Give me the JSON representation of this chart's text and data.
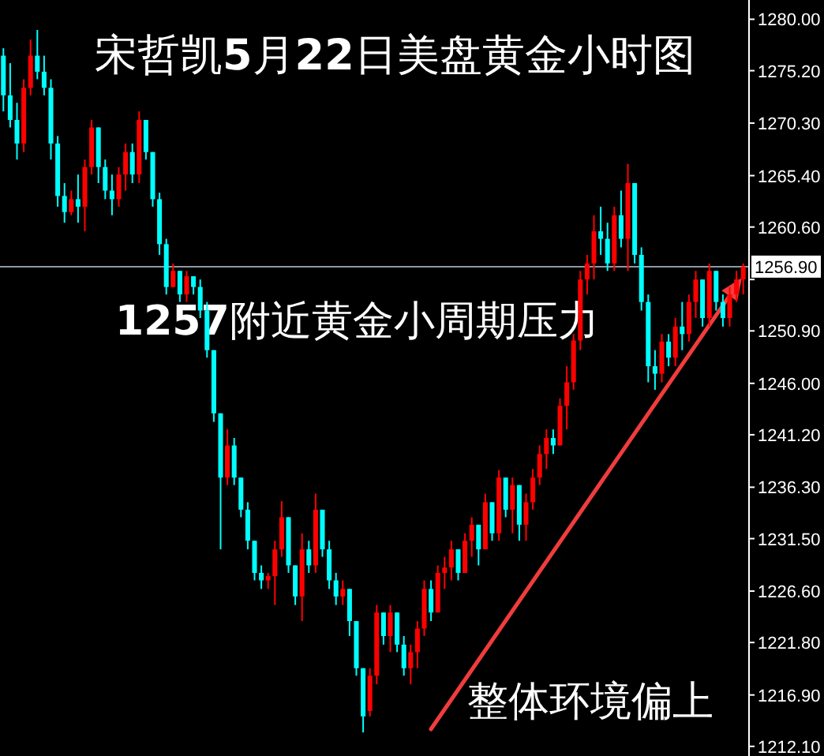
{
  "chart_data": {
    "type": "candlestick",
    "title": "宋哲凯**5**月**22**日美盘黄金小时图",
    "annotations": [
      "**1257**附近黄金小周期压力",
      "整体环境偏上"
    ],
    "categories": [
      null,
      null,
      null,
      null,
      null,
      null,
      null,
      null,
      null,
      null,
      null,
      null,
      null,
      null,
      null,
      null,
      null,
      null,
      null,
      null,
      null,
      null,
      null,
      null,
      null,
      null,
      null,
      null,
      null,
      null,
      null,
      null,
      null,
      null,
      null,
      null,
      null,
      null,
      null,
      null,
      null,
      null,
      null,
      null,
      null,
      null,
      null,
      null,
      null,
      null,
      null,
      null,
      null,
      null,
      null,
      null,
      null,
      null,
      null,
      null,
      null,
      null,
      null,
      null,
      null,
      null,
      null,
      null,
      null,
      null,
      null,
      null,
      null,
      null,
      null,
      null,
      null,
      null,
      null,
      null,
      null,
      null,
      null,
      null,
      null,
      null,
      null,
      null,
      null,
      null,
      null,
      null,
      null,
      null,
      null,
      null,
      null,
      null,
      null,
      null,
      null,
      null,
      null,
      null,
      null,
      null,
      null,
      null,
      null,
      null
    ],
    "ohlc": [
      [
        1276.6,
        1277.3,
        1271.4,
        1272.9
      ],
      [
        1272.9,
        1275.9,
        1269.9,
        1270.6
      ],
      [
        1270.6,
        1272.2,
        1266.9,
        1268.4
      ],
      [
        1268.4,
        1274.4,
        1267.6,
        1273.6
      ],
      [
        1273.6,
        1278.1,
        1272.9,
        1276.6
      ],
      [
        1276.6,
        1279.0,
        1274.4,
        1275.1
      ],
      [
        1275.1,
        1276.6,
        1272.9,
        1273.6
      ],
      [
        1273.6,
        1274.4,
        1266.9,
        1268.4
      ],
      [
        1268.4,
        1269.1,
        1262.5,
        1263.5
      ],
      [
        1263.5,
        1264.7,
        1261.0,
        1262.0
      ],
      [
        1262.0,
        1264.0,
        1261.7,
        1263.2
      ],
      [
        1263.2,
        1265.5,
        1261.0,
        1262.5
      ],
      [
        1262.5,
        1266.9,
        1260.2,
        1266.2
      ],
      [
        1266.2,
        1270.6,
        1265.5,
        1269.9
      ],
      [
        1269.9,
        1269.9,
        1264.7,
        1266.2
      ],
      [
        1266.2,
        1266.9,
        1263.2,
        1264.0
      ],
      [
        1264.0,
        1265.5,
        1261.7,
        1263.2
      ],
      [
        1263.2,
        1266.2,
        1262.5,
        1265.5
      ],
      [
        1265.5,
        1268.4,
        1264.0,
        1267.6
      ],
      [
        1267.6,
        1268.4,
        1264.7,
        1265.5
      ],
      [
        1265.5,
        1271.4,
        1264.7,
        1270.6
      ],
      [
        1270.6,
        1270.6,
        1266.9,
        1267.6
      ],
      [
        1267.6,
        1267.6,
        1262.5,
        1263.2
      ],
      [
        1263.2,
        1263.8,
        1258.0,
        1259.0
      ],
      [
        1259.0,
        1259.5,
        1254.3,
        1255.0
      ],
      [
        1255.0,
        1257.2,
        1255.0,
        1256.5
      ],
      [
        1256.5,
        1256.5,
        1253.6,
        1254.3
      ],
      [
        1254.3,
        1256.5,
        1253.6,
        1256.0
      ],
      [
        1256.0,
        1256.0,
        1254.3,
        1255.0
      ],
      [
        1255.0,
        1255.7,
        1252.1,
        1252.8
      ],
      [
        1252.8,
        1253.6,
        1248.4,
        1249.1
      ],
      [
        1249.1,
        1249.1,
        1242.4,
        1243.2
      ],
      [
        1243.2,
        1243.2,
        1230.5,
        1237.2
      ],
      [
        1237.2,
        1241.7,
        1236.5,
        1240.2
      ],
      [
        1240.2,
        1240.9,
        1236.5,
        1237.2
      ],
      [
        1237.2,
        1237.2,
        1233.5,
        1234.2
      ],
      [
        1234.2,
        1234.9,
        1230.5,
        1231.3
      ],
      [
        1231.3,
        1231.3,
        1227.6,
        1228.3
      ],
      [
        1228.3,
        1229.0,
        1226.8,
        1227.6
      ],
      [
        1227.6,
        1228.3,
        1226.8,
        1228.0
      ],
      [
        1228.0,
        1231.3,
        1225.3,
        1230.5
      ],
      [
        1230.5,
        1235.0,
        1229.8,
        1233.5
      ],
      [
        1233.5,
        1233.5,
        1228.3,
        1229.0
      ],
      [
        1229.0,
        1229.0,
        1225.3,
        1226.1
      ],
      [
        1226.1,
        1232.0,
        1223.8,
        1230.5
      ],
      [
        1230.5,
        1231.3,
        1228.3,
        1229.0
      ],
      [
        1229.0,
        1235.7,
        1228.3,
        1234.2
      ],
      [
        1234.2,
        1234.2,
        1229.8,
        1230.5
      ],
      [
        1230.5,
        1231.3,
        1226.8,
        1227.6
      ],
      [
        1227.6,
        1228.3,
        1225.3,
        1226.1
      ],
      [
        1226.1,
        1227.6,
        1225.3,
        1226.8
      ],
      [
        1226.8,
        1226.8,
        1222.4,
        1223.8
      ],
      [
        1223.8,
        1223.8,
        1218.7,
        1219.4
      ],
      [
        1219.4,
        1219.4,
        1213.4,
        1214.9
      ],
      [
        1215.4,
        1219.4,
        1214.9,
        1218.7
      ],
      [
        1218.7,
        1225.3,
        1217.9,
        1224.6
      ],
      [
        1224.6,
        1224.6,
        1221.6,
        1222.4
      ],
      [
        1222.4,
        1225.3,
        1220.9,
        1224.6
      ],
      [
        1224.6,
        1224.6,
        1220.9,
        1221.6
      ],
      [
        1221.6,
        1222.4,
        1218.7,
        1219.4
      ],
      [
        1219.4,
        1221.6,
        1217.9,
        1220.9
      ],
      [
        1220.9,
        1223.8,
        1219.4,
        1223.1
      ],
      [
        1223.1,
        1227.6,
        1222.4,
        1226.8
      ],
      [
        1226.8,
        1227.6,
        1223.8,
        1224.6
      ],
      [
        1224.6,
        1229.0,
        1224.6,
        1228.3
      ],
      [
        1228.3,
        1229.8,
        1226.8,
        1228.8
      ],
      [
        1228.8,
        1231.3,
        1227.6,
        1230.5
      ],
      [
        1230.5,
        1230.5,
        1227.6,
        1228.3
      ],
      [
        1228.3,
        1232.0,
        1228.3,
        1231.3
      ],
      [
        1231.3,
        1233.5,
        1229.8,
        1232.8
      ],
      [
        1232.8,
        1232.8,
        1229.0,
        1230.5
      ],
      [
        1230.5,
        1235.7,
        1230.5,
        1234.9
      ],
      [
        1234.9,
        1234.9,
        1231.3,
        1232.0
      ],
      [
        1232.0,
        1237.9,
        1231.3,
        1237.2
      ],
      [
        1237.2,
        1237.2,
        1233.5,
        1234.2
      ],
      [
        1234.2,
        1237.2,
        1232.0,
        1236.5
      ],
      [
        1236.5,
        1236.5,
        1231.3,
        1232.8
      ],
      [
        1232.8,
        1235.7,
        1231.3,
        1234.9
      ],
      [
        1234.9,
        1238.0,
        1234.2,
        1237.2
      ],
      [
        1237.2,
        1240.2,
        1236.5,
        1239.4
      ],
      [
        1239.4,
        1241.7,
        1238.0,
        1240.9
      ],
      [
        1240.9,
        1241.7,
        1239.4,
        1240.2
      ],
      [
        1240.2,
        1244.6,
        1240.2,
        1243.9
      ],
      [
        1243.9,
        1247.6,
        1241.7,
        1246.1
      ],
      [
        1246.1,
        1250.6,
        1245.4,
        1250.0
      ],
      [
        1250.0,
        1256.5,
        1249.1,
        1255.7
      ],
      [
        1255.7,
        1258.0,
        1254.3,
        1257.2
      ],
      [
        1257.2,
        1261.7,
        1255.7,
        1260.2
      ],
      [
        1260.2,
        1262.5,
        1258.0,
        1259.5
      ],
      [
        1259.5,
        1261.0,
        1256.5,
        1257.2
      ],
      [
        1257.2,
        1262.5,
        1256.5,
        1261.7
      ],
      [
        1261.7,
        1264.0,
        1258.7,
        1259.5
      ],
      [
        1259.5,
        1266.5,
        1256.5,
        1264.7
      ],
      [
        1264.7,
        1264.7,
        1257.2,
        1258.0
      ],
      [
        1258.0,
        1258.7,
        1252.8,
        1253.6
      ],
      [
        1253.6,
        1254.3,
        1246.1,
        1247.6
      ],
      [
        1247.6,
        1249.1,
        1245.4,
        1246.9
      ],
      [
        1246.9,
        1250.6,
        1246.1,
        1249.9
      ],
      [
        1249.9,
        1250.6,
        1247.6,
        1248.4
      ],
      [
        1248.4,
        1252.1,
        1247.6,
        1251.3
      ],
      [
        1251.3,
        1253.6,
        1249.1,
        1250.6
      ],
      [
        1250.6,
        1254.3,
        1249.9,
        1253.6
      ],
      [
        1253.6,
        1256.5,
        1252.1,
        1255.7
      ],
      [
        1255.7,
        1255.7,
        1251.3,
        1252.1
      ],
      [
        1252.1,
        1257.2,
        1251.3,
        1256.5
      ],
      [
        1256.5,
        1256.5,
        1252.8,
        1253.6
      ],
      [
        1253.6,
        1254.3,
        1251.3,
        1252.1
      ],
      [
        1252.1,
        1255.0,
        1251.3,
        1254.3
      ],
      [
        1254.3,
        1256.5,
        1253.6,
        1255.7
      ],
      [
        1255.7,
        1257.2,
        1254.3,
        1256.9
      ]
    ],
    "colors": [
      "#00ffff",
      "#00ffff",
      "#00ffff",
      "#ff0000",
      "#ff0000",
      "#00ffff",
      "#00ffff",
      "#00ffff",
      "#00ffff",
      "#00ffff",
      "#ff0000",
      "#00ffff",
      "#ff0000",
      "#ff0000",
      "#00ffff",
      "#00ffff",
      "#00ffff",
      "#ff0000",
      "#ff0000",
      "#00ffff",
      "#ff0000",
      "#00ffff",
      "#00ffff",
      "#00ffff",
      "#00ffff",
      "#ff0000",
      "#00ffff",
      "#ff0000",
      "#00ffff",
      "#00ffff",
      "#00ffff",
      "#00ffff",
      "#00ffff",
      "#ff0000",
      "#00ffff",
      "#00ffff",
      "#00ffff",
      "#00ffff",
      "#00ffff",
      "#ff0000",
      "#ff0000",
      "#ff0000",
      "#00ffff",
      "#00ffff",
      "#ff0000",
      "#00ffff",
      "#ff0000",
      "#00ffff",
      "#00ffff",
      "#00ffff",
      "#ff0000",
      "#00ffff",
      "#00ffff",
      "#00ffff",
      "#ff0000",
      "#ff0000",
      "#00ffff",
      "#ff0000",
      "#00ffff",
      "#00ffff",
      "#ff0000",
      "#ff0000",
      "#ff0000",
      "#00ffff",
      "#ff0000",
      "#ff0000",
      "#ff0000",
      "#00ffff",
      "#ff0000",
      "#ff0000",
      "#00ffff",
      "#ff0000",
      "#00ffff",
      "#ff0000",
      "#00ffff",
      "#ff0000",
      "#00ffff",
      "#ff0000",
      "#ff0000",
      "#ff0000",
      "#ff0000",
      "#00ffff",
      "#ff0000",
      "#ff0000",
      "#ff0000",
      "#ff0000",
      "#ff0000",
      "#ff0000",
      "#00ffff",
      "#00ffff",
      "#ff0000",
      "#00ffff",
      "#ff0000",
      "#00ffff",
      "#00ffff",
      "#00ffff",
      "#00ffff",
      "#ff0000",
      "#00ffff",
      "#ff0000",
      "#00ffff",
      "#ff0000",
      "#ff0000",
      "#00ffff",
      "#ff0000",
      "#00ffff",
      "#00ffff",
      "#ff0000",
      "#ff0000",
      "#ff0000"
    ],
    "ylim": [
      1211.2,
      1281.8
    ],
    "yticks": [
      {
        "value": 1280.0,
        "label": "1280.00"
      },
      {
        "value": 1275.2,
        "label": "1275.20"
      },
      {
        "value": 1270.3,
        "label": "1270.30"
      },
      {
        "value": 1265.4,
        "label": "1265.40"
      },
      {
        "value": 1260.6,
        "label": "1260.60"
      },
      {
        "value": 1255.7,
        "label": null
      },
      {
        "value": 1250.9,
        "label": "1250.90"
      },
      {
        "value": 1246.0,
        "label": "1246.00"
      },
      {
        "value": 1241.2,
        "label": "1241.20"
      },
      {
        "value": 1236.3,
        "label": "1236.30"
      },
      {
        "value": 1231.5,
        "label": "1231.50"
      },
      {
        "value": 1226.6,
        "label": "1226.60"
      },
      {
        "value": 1221.8,
        "label": "1221.80"
      },
      {
        "value": 1216.9,
        "label": "1216.90"
      },
      {
        "value": 1212.1,
        "label": "1212.10"
      }
    ],
    "ref_lines": [
      {
        "axis": "y",
        "value": 1256.9,
        "label": "1256.90",
        "color": "#8c9aa6"
      }
    ],
    "tick_labels": "y"
  }
}
